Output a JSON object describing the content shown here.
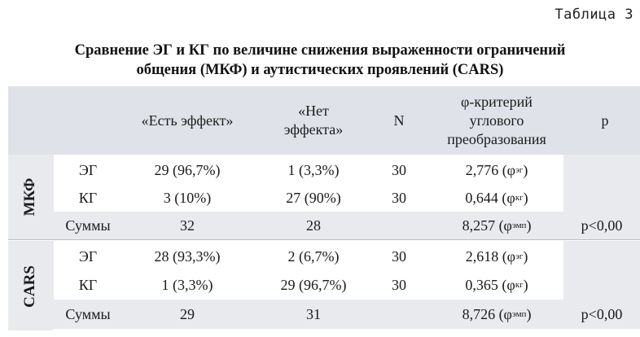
{
  "table_label": "Таблица 3",
  "title_line1": "Сравнение ЭГ и КГ по величине снижения выраженности ограничений",
  "title_line2": "общения (МКФ) и аутистических проявлений (CARS)",
  "headers": {
    "effect_yes": "«Есть эффект»",
    "effect_no_1": "«Нет",
    "effect_no_2": "эффекта»",
    "n": "N",
    "phi_1": "φ-критерий",
    "phi_2": "углового",
    "phi_3": "преобразования",
    "p": "p"
  },
  "groups": [
    {
      "label": "МКФ",
      "rows": [
        {
          "name": "ЭГ",
          "yes": "29 (96,7%)",
          "no": "1 (3,3%)",
          "n": "30",
          "phi": "2,776",
          "phi_sub": "эг",
          "p": ""
        },
        {
          "name": "КГ",
          "yes": "3 (10%)",
          "no": "27 (90%)",
          "n": "30",
          "phi": "0,644",
          "phi_sub": "кг",
          "p": ""
        },
        {
          "name": "Суммы",
          "yes": "32",
          "no": "28",
          "n": "",
          "phi": "8,257",
          "phi_sub": "эмп",
          "p": "p<0,00"
        }
      ]
    },
    {
      "label": "CARS",
      "rows": [
        {
          "name": "ЭГ",
          "yes": "28 (93,3%)",
          "no": "2 (6,7%)",
          "n": "30",
          "phi": "2,618",
          "phi_sub": "эг",
          "p": ""
        },
        {
          "name": "КГ",
          "yes": "1 (3,3%)",
          "no": "29 (96,7%)",
          "n": "30",
          "phi": "0,365",
          "phi_sub": "кг",
          "p": ""
        },
        {
          "name": "Суммы",
          "yes": "29",
          "no": "31",
          "n": "",
          "phi": "8,726",
          "phi_sub": "эмп",
          "p": "p<0,00"
        }
      ]
    }
  ]
}
